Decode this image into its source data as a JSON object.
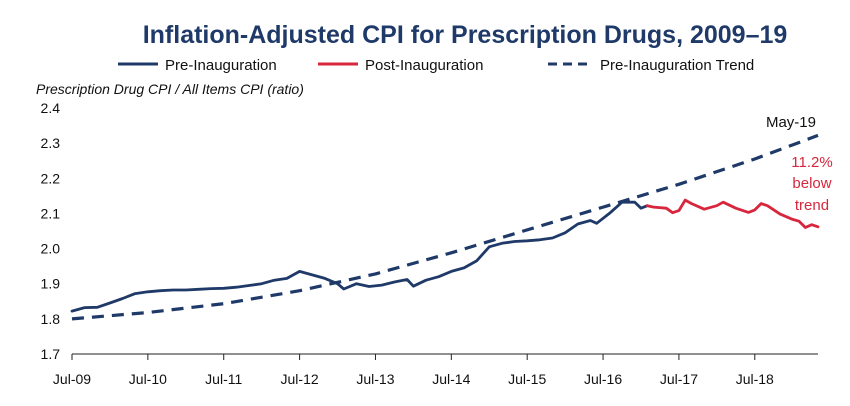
{
  "chart_data": {
    "type": "line",
    "title": "Inflation-Adjusted CPI for Prescription Drugs, 2009–19",
    "ylabel": "Prescription Drug CPI  /  All Items CPI (ratio)",
    "xlabel": "",
    "x_ticks": [
      "Jul-09",
      "Jul-10",
      "Jul-11",
      "Jul-12",
      "Jul-13",
      "Jul-14",
      "Jul-15",
      "Jul-16",
      "Jul-17",
      "Jul-18"
    ],
    "y_ticks": [
      "1.7",
      "1.8",
      "1.9",
      "2.0",
      "2.1",
      "2.2",
      "2.3",
      "2.4"
    ],
    "ylim": [
      1.7,
      2.4
    ],
    "xlim": [
      "2009-07",
      "2019-05"
    ],
    "grid": false,
    "legend_position": "top",
    "series": [
      {
        "name": "Pre-Inauguration",
        "color": "#1f3a68",
        "style": "solid",
        "points": [
          [
            "2009-07",
            1.822
          ],
          [
            "2009-09",
            1.832
          ],
          [
            "2009-11",
            1.833
          ],
          [
            "2010-01",
            1.845
          ],
          [
            "2010-03",
            1.858
          ],
          [
            "2010-05",
            1.872
          ],
          [
            "2010-07",
            1.877
          ],
          [
            "2010-09",
            1.88
          ],
          [
            "2010-11",
            1.882
          ],
          [
            "2011-01",
            1.882
          ],
          [
            "2011-03",
            1.884
          ],
          [
            "2011-05",
            1.886
          ],
          [
            "2011-07",
            1.887
          ],
          [
            "2011-09",
            1.89
          ],
          [
            "2011-11",
            1.895
          ],
          [
            "2012-01",
            1.9
          ],
          [
            "2012-03",
            1.91
          ],
          [
            "2012-05",
            1.915
          ],
          [
            "2012-07",
            1.935
          ],
          [
            "2012-09",
            1.925
          ],
          [
            "2012-11",
            1.915
          ],
          [
            "2013-01",
            1.9
          ],
          [
            "2013-02",
            1.885
          ],
          [
            "2013-04",
            1.9
          ],
          [
            "2013-06",
            1.892
          ],
          [
            "2013-08",
            1.896
          ],
          [
            "2013-10",
            1.905
          ],
          [
            "2013-12",
            1.912
          ],
          [
            "2014-01",
            1.893
          ],
          [
            "2014-03",
            1.91
          ],
          [
            "2014-05",
            1.92
          ],
          [
            "2014-07",
            1.935
          ],
          [
            "2014-09",
            1.945
          ],
          [
            "2014-11",
            1.965
          ],
          [
            "2015-01",
            2.005
          ],
          [
            "2015-03",
            2.015
          ],
          [
            "2015-05",
            2.02
          ],
          [
            "2015-07",
            2.022
          ],
          [
            "2015-09",
            2.025
          ],
          [
            "2015-11",
            2.03
          ],
          [
            "2016-01",
            2.045
          ],
          [
            "2016-03",
            2.07
          ],
          [
            "2016-05",
            2.08
          ],
          [
            "2016-06",
            2.072
          ],
          [
            "2016-08",
            2.1
          ],
          [
            "2016-10",
            2.132
          ],
          [
            "2016-12",
            2.132
          ],
          [
            "2017-01",
            2.115
          ],
          [
            "2017-02",
            2.122
          ]
        ]
      },
      {
        "name": "Post-Inauguration",
        "color": "#d7263d",
        "style": "solid",
        "points": [
          [
            "2017-02",
            2.122
          ],
          [
            "2017-03",
            2.118
          ],
          [
            "2017-05",
            2.115
          ],
          [
            "2017-06",
            2.102
          ],
          [
            "2017-07",
            2.108
          ],
          [
            "2017-08",
            2.138
          ],
          [
            "2017-09",
            2.128
          ],
          [
            "2017-11",
            2.112
          ],
          [
            "2018-01",
            2.122
          ],
          [
            "2018-02",
            2.132
          ],
          [
            "2018-04",
            2.115
          ],
          [
            "2018-06",
            2.103
          ],
          [
            "2018-07",
            2.11
          ],
          [
            "2018-08",
            2.128
          ],
          [
            "2018-09",
            2.122
          ],
          [
            "2018-11",
            2.098
          ],
          [
            "2019-01",
            2.083
          ],
          [
            "2019-02",
            2.078
          ],
          [
            "2019-03",
            2.06
          ],
          [
            "2019-04",
            2.068
          ],
          [
            "2019-05",
            2.062
          ]
        ]
      },
      {
        "name": "Pre-Inauguration Trend",
        "color": "#1f3a68",
        "style": "dashed",
        "points": [
          [
            "2009-07",
            1.8
          ],
          [
            "2010-07",
            1.818
          ],
          [
            "2011-07",
            1.843
          ],
          [
            "2012-07",
            1.88
          ],
          [
            "2013-07",
            1.928
          ],
          [
            "2014-07",
            1.988
          ],
          [
            "2015-07",
            2.053
          ],
          [
            "2016-07",
            2.118
          ],
          [
            "2017-07",
            2.183
          ],
          [
            "2018-07",
            2.255
          ],
          [
            "2019-05",
            2.322
          ]
        ]
      }
    ],
    "annotations": [
      {
        "text": "May-19",
        "color": "#111111",
        "at": [
          "2019-05",
          2.322
        ]
      },
      {
        "text": "11.2%",
        "color": "#d7263d",
        "at": [
          "2019-05",
          2.2
        ]
      },
      {
        "text": "below",
        "color": "#d7263d",
        "at": [
          "2019-05",
          2.2
        ]
      },
      {
        "text": "trend",
        "color": "#d7263d",
        "at": [
          "2019-05",
          2.2
        ]
      }
    ]
  }
}
